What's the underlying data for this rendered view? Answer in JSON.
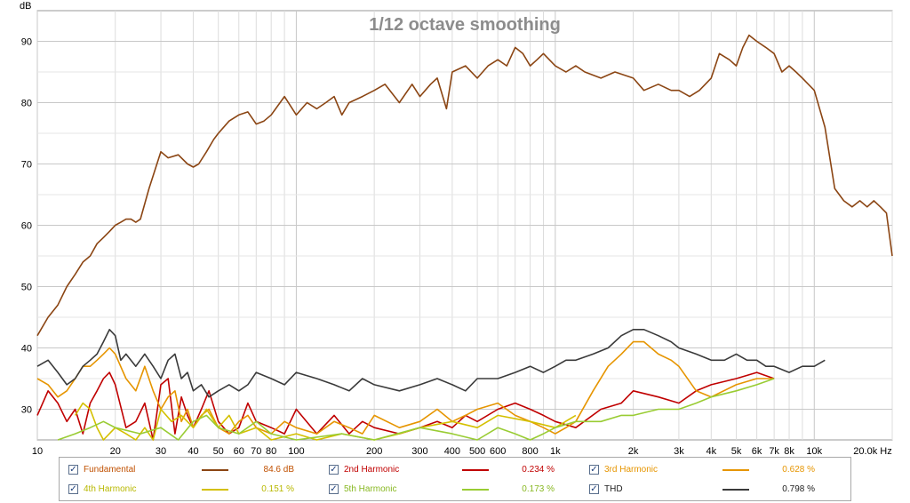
{
  "chart_data": {
    "type": "line",
    "title": "1/12 octave smoothing",
    "ylabel": "dB",
    "xscale": "log",
    "xlim": [
      10,
      20000
    ],
    "ylim": [
      25,
      95
    ],
    "grid": true,
    "y_ticks": [
      30,
      40,
      50,
      60,
      70,
      80,
      90
    ],
    "x_ticks": [
      10,
      20,
      30,
      40,
      50,
      60,
      70,
      80,
      100,
      200,
      300,
      400,
      500,
      600,
      800,
      1000,
      2000,
      3000,
      4000,
      5000,
      6000,
      7000,
      8000,
      10000,
      20000
    ],
    "x_tick_labels": [
      "10",
      "20",
      "30",
      "40",
      "50",
      "60",
      "70",
      "80",
      "100",
      "200",
      "300",
      "400",
      "500",
      "600",
      "800",
      "1k",
      "2k",
      "3k",
      "4k",
      "5k",
      "6k",
      "7k",
      "8k",
      "10k",
      "20.0k Hz"
    ],
    "series": [
      {
        "name": "Fundamental",
        "color": "#8b4513",
        "value_label": "84.6 dB",
        "x": [
          10,
          11,
          12,
          13,
          14,
          15,
          16,
          17,
          18,
          19,
          20,
          21,
          22,
          23,
          24,
          25,
          27,
          30,
          32,
          35,
          38,
          40,
          42,
          45,
          48,
          50,
          55,
          60,
          65,
          70,
          75,
          80,
          90,
          100,
          110,
          120,
          130,
          140,
          150,
          160,
          180,
          200,
          220,
          250,
          280,
          300,
          330,
          350,
          380,
          400,
          450,
          500,
          550,
          600,
          650,
          700,
          750,
          800,
          850,
          900,
          1000,
          1100,
          1200,
          1300,
          1500,
          1700,
          2000,
          2200,
          2500,
          2800,
          3000,
          3300,
          3600,
          4000,
          4300,
          4700,
          5000,
          5300,
          5600,
          6000,
          6500,
          7000,
          7500,
          8000,
          8500,
          9000,
          10000,
          11000,
          12000,
          13000,
          14000,
          15000,
          16000,
          17000,
          18000,
          19000,
          20000
        ],
        "y": [
          42,
          45,
          47,
          50,
          52,
          54,
          55,
          57,
          58,
          59,
          60,
          60.5,
          61,
          61,
          60.5,
          61,
          66,
          72,
          71,
          71.5,
          70,
          69.5,
          70,
          72,
          74,
          75,
          77,
          78,
          78.5,
          76.5,
          77,
          78,
          81,
          78,
          80,
          79,
          80,
          81,
          78,
          80,
          81,
          82,
          83,
          80,
          83,
          81,
          83,
          84,
          79,
          85,
          86,
          84,
          86,
          87,
          86,
          89,
          88,
          86,
          87,
          88,
          86,
          85,
          86,
          85,
          84,
          85,
          84,
          82,
          83,
          82,
          82,
          81,
          82,
          84,
          88,
          87,
          86,
          89,
          91,
          90,
          89,
          88,
          85,
          86,
          85,
          84,
          82,
          76,
          66,
          64,
          63,
          64,
          63,
          64,
          63,
          62,
          55
        ]
      },
      {
        "name": "2nd Harmonic",
        "color": "#c00000",
        "value_label": "0.234 %",
        "x": [
          10,
          11,
          12,
          13,
          14,
          15,
          16,
          17,
          18,
          19,
          20,
          22,
          24,
          26,
          28,
          30,
          32,
          34,
          36,
          38,
          40,
          43,
          46,
          50,
          55,
          60,
          65,
          70,
          80,
          90,
          100,
          120,
          140,
          160,
          180,
          200,
          250,
          300,
          350,
          400,
          450,
          500,
          600,
          700,
          800,
          900,
          1000,
          1200,
          1500,
          1800,
          2000,
          2500,
          3000,
          3500,
          4000,
          5000,
          6000,
          7000
        ],
        "y": [
          29,
          33,
          31,
          28,
          30,
          26,
          31,
          33,
          35,
          36,
          34,
          27,
          28,
          31,
          25,
          34,
          35,
          26,
          32,
          29,
          27,
          30,
          33,
          28,
          26,
          27,
          31,
          28,
          27,
          26,
          30,
          26,
          29,
          26,
          28,
          27,
          26,
          27,
          28,
          27,
          29,
          28,
          30,
          31,
          30,
          29,
          28,
          27,
          30,
          31,
          33,
          32,
          31,
          33,
          34,
          35,
          36,
          35
        ]
      },
      {
        "name": "3rd Harmonic",
        "color": "#e69500",
        "value_label": "0.628 %",
        "x": [
          10,
          11,
          12,
          13,
          14,
          15,
          16,
          17,
          18,
          19,
          20,
          22,
          24,
          26,
          28,
          30,
          32,
          34,
          36,
          38,
          40,
          43,
          46,
          50,
          55,
          60,
          65,
          70,
          80,
          90,
          100,
          120,
          140,
          160,
          180,
          200,
          250,
          300,
          350,
          400,
          450,
          500,
          600,
          700,
          800,
          900,
          1000,
          1100,
          1200,
          1400,
          1600,
          1800,
          2000,
          2200,
          2500,
          2800,
          3000,
          3500,
          4000,
          5000,
          6000,
          7000
        ],
        "y": [
          35,
          34,
          32,
          33,
          35,
          37,
          37,
          38,
          39,
          40,
          39,
          35,
          33,
          37,
          33,
          30,
          32,
          33,
          28,
          30,
          27,
          29,
          30,
          27,
          26,
          28,
          29,
          27,
          26,
          28,
          27,
          26,
          28,
          27,
          26,
          29,
          27,
          28,
          30,
          28,
          29,
          30,
          31,
          29,
          28,
          27,
          26,
          27,
          28,
          33,
          37,
          39,
          41,
          41,
          39,
          38,
          37,
          33,
          32,
          34,
          35,
          35
        ]
      },
      {
        "name": "4th Harmonic",
        "color": "#d4c000",
        "value_label": "0.151 %",
        "x": [
          14,
          15,
          16,
          17,
          18,
          20,
          22,
          24,
          26,
          28,
          30,
          33,
          36,
          40,
          45,
          50,
          55,
          60,
          70,
          80,
          100,
          120,
          150,
          200,
          250,
          300,
          400,
          500,
          600,
          800,
          1000,
          1200
        ],
        "y": [
          29,
          31,
          30,
          27,
          25,
          27,
          26,
          25,
          27,
          25,
          30,
          28,
          29,
          27,
          30,
          27,
          29,
          26,
          27,
          25,
          26,
          25,
          26,
          25,
          26,
          27,
          28,
          27,
          29,
          28,
          27,
          29
        ]
      },
      {
        "name": "5th Harmonic",
        "color": "#99cc33",
        "value_label": "0.173 %",
        "x": [
          12,
          14,
          16,
          18,
          20,
          25,
          30,
          35,
          40,
          45,
          50,
          60,
          70,
          80,
          100,
          150,
          200,
          300,
          400,
          500,
          600,
          700,
          800,
          900,
          1000,
          1200,
          1500,
          1800,
          2000,
          2500,
          3000,
          3500,
          4000,
          5000,
          6000,
          7000
        ],
        "y": [
          25,
          26,
          27,
          28,
          27,
          26,
          27,
          25,
          28,
          29,
          27,
          26,
          28,
          26,
          25,
          26,
          25,
          27,
          26,
          25,
          27,
          26,
          25,
          26,
          27,
          28,
          28,
          29,
          29,
          30,
          30,
          31,
          32,
          33,
          34,
          35
        ]
      },
      {
        "name": "THD",
        "color": "#3a3a3a",
        "value_label": "0.798 %",
        "x": [
          10,
          11,
          12,
          13,
          14,
          15,
          16,
          17,
          18,
          19,
          20,
          21,
          22,
          24,
          26,
          28,
          30,
          32,
          34,
          36,
          38,
          40,
          43,
          46,
          50,
          55,
          60,
          65,
          70,
          80,
          90,
          100,
          120,
          140,
          160,
          180,
          200,
          250,
          300,
          350,
          400,
          450,
          500,
          600,
          700,
          800,
          900,
          1000,
          1100,
          1200,
          1400,
          1600,
          1800,
          2000,
          2200,
          2500,
          2800,
          3000,
          3500,
          4000,
          4500,
          5000,
          5500,
          6000,
          6500,
          7000,
          8000,
          9000,
          10000,
          11000
        ],
        "y": [
          37,
          38,
          36,
          34,
          35,
          37,
          38,
          39,
          41,
          43,
          42,
          38,
          39,
          37,
          39,
          37,
          35,
          38,
          39,
          35,
          36,
          33,
          34,
          32,
          33,
          34,
          33,
          34,
          36,
          35,
          34,
          36,
          35,
          34,
          33,
          35,
          34,
          33,
          34,
          35,
          34,
          33,
          35,
          35,
          36,
          37,
          36,
          37,
          38,
          38,
          39,
          40,
          42,
          43,
          43,
          42,
          41,
          40,
          39,
          38,
          38,
          39,
          38,
          38,
          37,
          37,
          36,
          37,
          37,
          38
        ]
      }
    ]
  },
  "legend": {
    "items": [
      {
        "label": "Fundamental",
        "value": "84.6 dB",
        "color": "#8b4513",
        "label_color": "#c05000"
      },
      {
        "label": "2nd Harmonic",
        "value": "0.234 %",
        "color": "#c00000",
        "label_color": "#c00000"
      },
      {
        "label": "3rd Harmonic",
        "value": "0.628 %",
        "color": "#e69500",
        "label_color": "#e69500"
      },
      {
        "label": "4th Harmonic",
        "value": "0.151 %",
        "color": "#d4c000",
        "label_color": "#b8b800"
      },
      {
        "label": "5th Harmonic",
        "value": "0.173 %",
        "color": "#99cc33",
        "label_color": "#88b822"
      },
      {
        "label": "THD",
        "value": "0.798 %",
        "color": "#3a3a3a",
        "label_color": "#202020"
      }
    ]
  }
}
